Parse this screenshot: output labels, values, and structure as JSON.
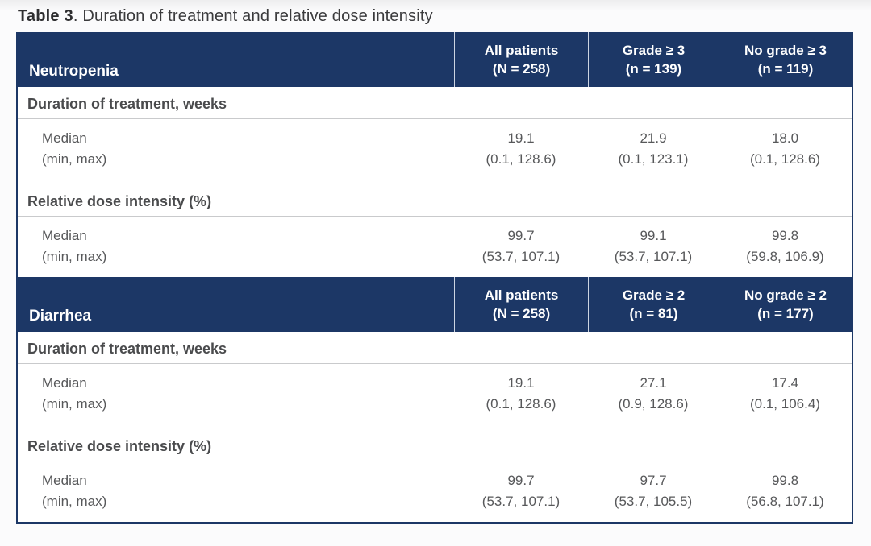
{
  "title": {
    "label": "Table 3",
    "rest": ". Duration of treatment and relative dose intensity"
  },
  "colors": {
    "header_bg": "#1c3766",
    "header_text": "#ffffff",
    "body_text": "#57585a",
    "section_divider": "#c9cacc",
    "table_border": "#1c3766",
    "page_bg": "#f5f5f6"
  },
  "chart_data": {
    "type": "table",
    "tables": [
      {
        "row_label": "Neutropenia",
        "columns": [
          {
            "line1": "All patients",
            "line2": "(N = 258)"
          },
          {
            "line1": "Grade ≥ 3",
            "line2": "(n = 139)"
          },
          {
            "line1": "No grade ≥ 3",
            "line2": "(n = 119)"
          }
        ],
        "sections": [
          {
            "header": "Duration of treatment, weeks",
            "rows": [
              {
                "label": "Median",
                "values": [
                  "19.1",
                  "21.9",
                  "18.0"
                ]
              },
              {
                "label": "(min, max)",
                "values": [
                  "(0.1, 128.6)",
                  "(0.1, 123.1)",
                  "(0.1, 128.6)"
                ]
              }
            ]
          },
          {
            "header": "Relative dose intensity (%)",
            "rows": [
              {
                "label": "Median",
                "values": [
                  "99.7",
                  "99.1",
                  "99.8"
                ]
              },
              {
                "label": "(min, max)",
                "values": [
                  "(53.7, 107.1)",
                  "(53.7, 107.1)",
                  "(59.8, 106.9)"
                ]
              }
            ]
          }
        ]
      },
      {
        "row_label": "Diarrhea",
        "columns": [
          {
            "line1": "All patients",
            "line2": "(N = 258)"
          },
          {
            "line1": "Grade ≥ 2",
            "line2": "(n = 81)"
          },
          {
            "line1": "No grade ≥ 2",
            "line2": "(n = 177)"
          }
        ],
        "sections": [
          {
            "header": "Duration of treatment, weeks",
            "rows": [
              {
                "label": "Median",
                "values": [
                  "19.1",
                  "27.1",
                  "17.4"
                ]
              },
              {
                "label": "(min, max)",
                "values": [
                  "(0.1, 128.6)",
                  "(0.9, 128.6)",
                  "(0.1, 106.4)"
                ]
              }
            ]
          },
          {
            "header": "Relative dose intensity (%)",
            "rows": [
              {
                "label": "Median",
                "values": [
                  "99.7",
                  "97.7",
                  "99.8"
                ]
              },
              {
                "label": "(min, max)",
                "values": [
                  "(53.7, 107.1)",
                  "(53.7, 105.5)",
                  "(56.8, 107.1)"
                ]
              }
            ]
          }
        ]
      }
    ]
  }
}
